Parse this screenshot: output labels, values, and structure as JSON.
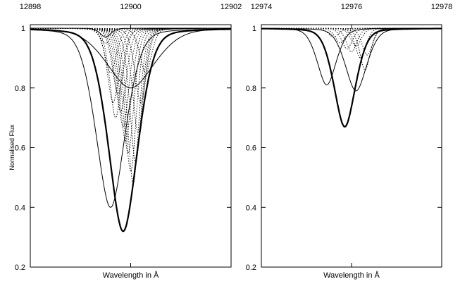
{
  "chart_data": {
    "type": "line",
    "ylabel": "Normalised Flux",
    "panels": [
      {
        "xlabel": "Wavelength in Å",
        "xlim": [
          12898,
          12902
        ],
        "ylim": [
          0.2,
          1.05
        ],
        "x_ticks": [
          "12898",
          "12900",
          "12902"
        ],
        "y_ticks": [
          "0.2",
          "0.4",
          "0.6",
          "0.8",
          "1"
        ],
        "lines": [
          {
            "style": "bold",
            "center": 12899.85,
            "depth": 0.68,
            "width": 0.55,
            "cont": 1.0
          },
          {
            "style": "thin",
            "center": 12899.6,
            "depth": 0.6,
            "width": 0.55,
            "cont": 1.0
          },
          {
            "style": "thin-wide",
            "center": 12900.0,
            "depth": 0.2,
            "width": 0.9,
            "cont": 1.0
          },
          {
            "style": "thin-narrow",
            "center": 12899.5,
            "depth": 0.03,
            "width": 0.2,
            "cont": 1.0
          }
        ],
        "dotted_lines": [
          {
            "center": 12899.5,
            "depth": 0.05
          },
          {
            "center": 12899.6,
            "depth": 0.15
          },
          {
            "center": 12899.65,
            "depth": 0.25
          },
          {
            "center": 12899.7,
            "depth": 0.3
          },
          {
            "center": 12899.75,
            "depth": 0.22
          },
          {
            "center": 12899.8,
            "depth": 0.28
          },
          {
            "center": 12899.85,
            "depth": 0.33
          },
          {
            "center": 12899.9,
            "depth": 0.38
          },
          {
            "center": 12899.95,
            "depth": 0.42
          },
          {
            "center": 12900.0,
            "depth": 0.48
          },
          {
            "center": 12900.05,
            "depth": 0.52
          },
          {
            "center": 12900.1,
            "depth": 0.45
          },
          {
            "center": 12900.15,
            "depth": 0.35
          },
          {
            "center": 12900.2,
            "depth": 0.25
          },
          {
            "center": 12900.3,
            "depth": 0.15
          }
        ]
      },
      {
        "xlabel": "Wavelength in Å",
        "xlim": [
          12974,
          12978
        ],
        "ylim": [
          0.2,
          1.05
        ],
        "x_ticks": [
          "12974",
          "12976",
          "12978"
        ],
        "y_ticks": [
          "0.2",
          "0.4",
          "0.6",
          "0.8",
          "1"
        ],
        "lines": [
          {
            "style": "bold",
            "center": 12975.85,
            "depth": 0.33,
            "width": 0.45,
            "cont": 1.0
          },
          {
            "style": "thin",
            "center": 12975.45,
            "depth": 0.19,
            "width": 0.4,
            "cont": 1.0
          },
          {
            "style": "thin",
            "center": 12976.1,
            "depth": 0.21,
            "width": 0.45,
            "cont": 1.0
          }
        ],
        "dotted_lines": [
          {
            "center": 12975.6,
            "depth": 0.03
          },
          {
            "center": 12975.75,
            "depth": 0.05
          },
          {
            "center": 12975.9,
            "depth": 0.07
          },
          {
            "center": 12976.0,
            "depth": 0.08
          },
          {
            "center": 12976.1,
            "depth": 0.06
          },
          {
            "center": 12976.2,
            "depth": 0.1
          },
          {
            "center": 12976.3,
            "depth": 0.14
          },
          {
            "center": 12976.35,
            "depth": 0.09
          }
        ]
      }
    ]
  }
}
